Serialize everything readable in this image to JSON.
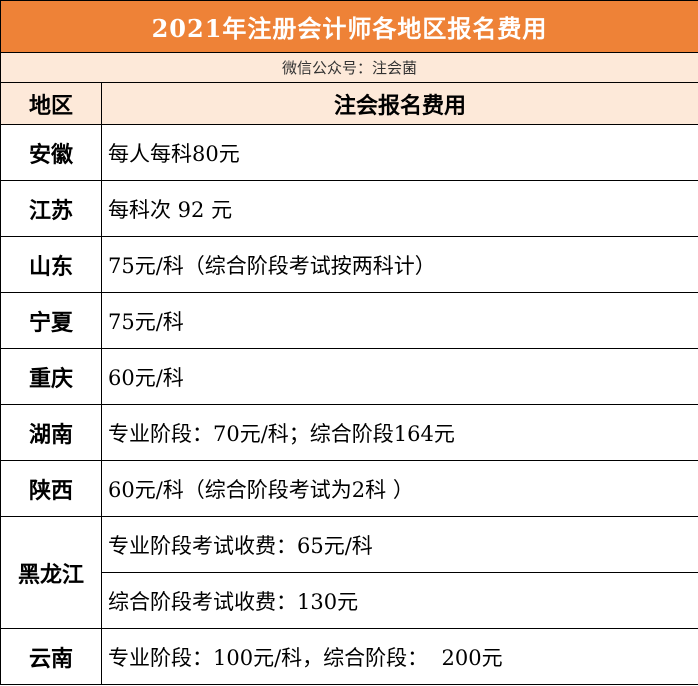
{
  "title": "2021年注册会计师各地区报名费用",
  "subtitle": "微信公众号：注会菌",
  "headers": {
    "region": "地区",
    "fee": "注会报名费用"
  },
  "rows": [
    {
      "region": "安徽",
      "fee": "每人每科80元"
    },
    {
      "region": "江苏",
      "fee": "每科次 92 元"
    },
    {
      "region": "山东",
      "fee": "75元/科（综合阶段考试按两科计）"
    },
    {
      "region": "宁夏",
      "fee": "75元/科"
    },
    {
      "region": "重庆",
      "fee": "60元/科"
    },
    {
      "region": "湖南",
      "fee": "专业阶段：70元/科；综合阶段164元"
    },
    {
      "region": "陕西",
      "fee": "60元/科（综合阶段考试为2科 ）"
    },
    {
      "region": "黑龙江",
      "fee_line1": "专业阶段考试收费：65元/科",
      "fee_line2": "综合阶段考试收费：130元"
    },
    {
      "region": "云南",
      "fee": "专业阶段：100元/科，综合阶段：  200元"
    }
  ],
  "colors": {
    "title_bg": "#ee8237",
    "header_bg": "#fde9d9"
  }
}
